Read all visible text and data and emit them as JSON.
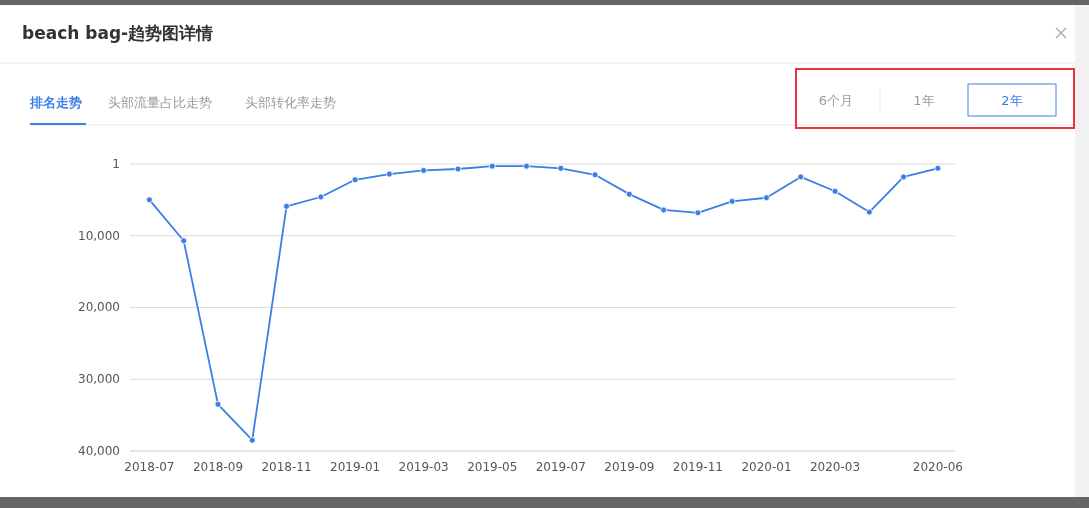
{
  "chart_data": {
    "type": "line",
    "title": "beach bag-趋势图详情",
    "annotations": [
      "排名走势",
      "头部流量占比走势",
      "头部转化率走势",
      "6个月",
      "1年",
      "2年"
    ],
    "x": [
      "2018-07",
      "2018-08",
      "2018-09",
      "2018-10",
      "2018-11",
      "2018-12",
      "2019-01",
      "2019-02",
      "2019-03",
      "2019-04",
      "2019-05",
      "2019-06",
      "2019-07",
      "2019-08",
      "2019-09",
      "2019-10",
      "2019-11",
      "2019-12",
      "2020-01",
      "2020-02",
      "2020-03",
      "2020-04",
      "2020-05",
      "2020-06"
    ],
    "series": [
      {
        "color": "#3b7ee6",
        "values": [
          5000,
          10700,
          33500,
          38500,
          5900,
          4600,
          2200,
          1400,
          900,
          700,
          300,
          300,
          600,
          1500,
          4200,
          6400,
          6800,
          5200,
          4700,
          1800,
          3800,
          6700,
          1800,
          600
        ]
      }
    ],
    "xlim": [
      "2018-06-14",
      "2020-06-16"
    ],
    "xticks": [
      "2018-07",
      "2018-09",
      "2018-11",
      "2019-01",
      "2019-03",
      "2019-05",
      "2019-07",
      "2019-09",
      "2019-11",
      "2020-01",
      "2020-03",
      "2020-06"
    ],
    "ylim": [
      40000,
      1
    ],
    "yticks": [
      {
        "value": 1,
        "label": "1"
      },
      {
        "value": 10000,
        "label": "10,000"
      },
      {
        "value": 20000,
        "label": "20,000"
      },
      {
        "value": 30000,
        "label": "30,000"
      },
      {
        "value": 40000,
        "label": "40,000"
      }
    ],
    "grid": "y",
    "marker": "circle",
    "line_style": "solid"
  }
}
